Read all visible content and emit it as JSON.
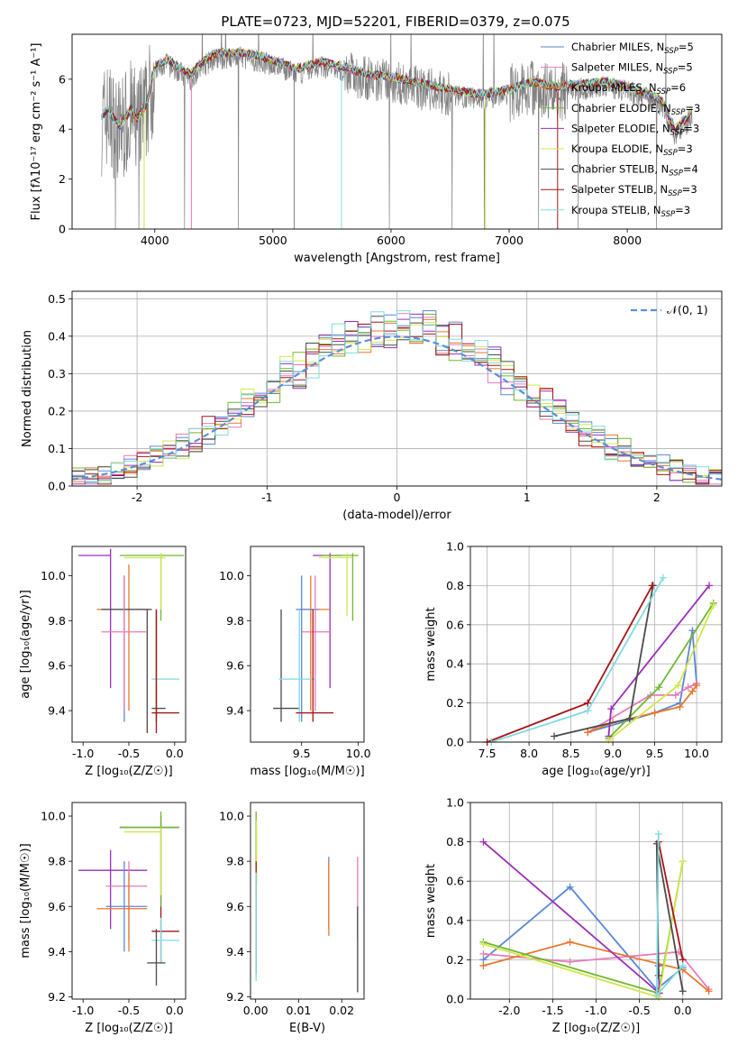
{
  "figure": {
    "title": "PLATE=0723, MJD=52201, FIBERID=0379, z=0.075"
  },
  "series_colors": {
    "Chabrier MILES": "#5b86d6",
    "Salpeter MILES": "#e87ab8",
    "Kroupa MILES": "#e8782a",
    "Chabrier ELODIE": "#6fb82f",
    "Salpeter ELODIE": "#9a2fb8",
    "Kroupa ELODIE": "#d2e64a",
    "Chabrier STELIB": "#4a4a4a",
    "Salpeter STELIB": "#a81414",
    "Kroupa STELIB": "#7fdbe0"
  },
  "chart_data": [
    {
      "type": "line",
      "panel": "spectrum",
      "title": "PLATE=0723, MJD=52201, FIBERID=0379, z=0.075",
      "xlabel": "wavelength [Angstrom, rest frame]",
      "ylabel": "Flux [fλ10⁻¹⁷ erg cm⁻² s⁻¹ A⁻¹]",
      "xlim": [
        3300,
        8800
      ],
      "ylim": [
        0,
        7.8
      ],
      "xticks": [
        4000,
        5000,
        6000,
        7000,
        8000
      ],
      "yticks": [
        0,
        2,
        4,
        6
      ],
      "data_color": "#808080",
      "continuum": [
        [
          3550,
          4.3
        ],
        [
          3600,
          4.6
        ],
        [
          3700,
          3.9
        ],
        [
          3800,
          4.6
        ],
        [
          3850,
          4.2
        ],
        [
          3930,
          4.8
        ],
        [
          4000,
          6.3
        ],
        [
          4100,
          6.6
        ],
        [
          4200,
          6.3
        ],
        [
          4300,
          6.0
        ],
        [
          4400,
          6.5
        ],
        [
          4500,
          6.8
        ],
        [
          4700,
          6.9
        ],
        [
          4900,
          6.7
        ],
        [
          5100,
          6.4
        ],
        [
          5200,
          6.2
        ],
        [
          5400,
          6.5
        ],
        [
          5600,
          6.3
        ],
        [
          5800,
          6.0
        ],
        [
          6000,
          5.9
        ],
        [
          6200,
          5.7
        ],
        [
          6400,
          5.5
        ],
        [
          6600,
          5.3
        ],
        [
          6800,
          5.2
        ],
        [
          7000,
          5.4
        ],
        [
          7200,
          5.7
        ],
        [
          7400,
          5.5
        ],
        [
          7600,
          5.6
        ],
        [
          7800,
          5.7
        ],
        [
          8000,
          5.5
        ],
        [
          8200,
          5.2
        ],
        [
          8300,
          4.9
        ],
        [
          8400,
          3.8
        ],
        [
          8500,
          4.2
        ],
        [
          8550,
          4.6
        ]
      ],
      "legend_location": "upper right",
      "legend": [
        {
          "label": "Chabrier MILES, N",
          "sub": "SSP",
          "tail": "=5",
          "color": "#5b86d6"
        },
        {
          "label": "Salpeter MILES, N",
          "sub": "SSP",
          "tail": "=5",
          "color": "#e87ab8"
        },
        {
          "label": "Kroupa MILES, N",
          "sub": "SSP",
          "tail": "=6",
          "color": "#e8782a"
        },
        {
          "label": "Chabrier ELODIE, N",
          "sub": "SSP",
          "tail": "=3",
          "color": "#6fb82f"
        },
        {
          "label": "Salpeter ELODIE, N",
          "sub": "SSP",
          "tail": "=3",
          "color": "#9a2fb8"
        },
        {
          "label": "Kroupa ELODIE, N",
          "sub": "SSP",
          "tail": "=3",
          "color": "#d2e64a"
        },
        {
          "label": "Chabrier STELIB, N",
          "sub": "SSP",
          "tail": "=4",
          "color": "#4a4a4a"
        },
        {
          "label": "Salpeter STELIB, N",
          "sub": "SSP",
          "tail": "=3",
          "color": "#a81414"
        },
        {
          "label": "Kroupa STELIB, N",
          "sub": "SSP",
          "tail": "=3",
          "color": "#7fdbe0"
        }
      ]
    },
    {
      "type": "histogram",
      "panel": "residuals",
      "xlabel": "(data-model)/error",
      "ylabel": "Normed distribution",
      "xlim": [
        -2.5,
        2.5
      ],
      "ylim": [
        0,
        0.52
      ],
      "xticks": [
        -2,
        -1,
        0,
        1,
        2
      ],
      "yticks": [
        0.0,
        0.1,
        0.2,
        0.3,
        0.4,
        0.5
      ],
      "grid": true,
      "legend_location": "upper right",
      "gaussian_label": "𝒩(0, 1)",
      "gaussian_color": "#5b8fd6",
      "bin_width": 0.1,
      "bin_start": -2.5
    },
    {
      "type": "scatter",
      "panel": "age-Z",
      "xlabel": "Z [log₁₀(Z/Z☉)]",
      "ylabel": "age  [log₁₀(age/yr)]",
      "xlim": [
        -1.12,
        0.12
      ],
      "ylim": [
        9.26,
        10.13
      ],
      "xticks": [
        -1.0,
        -0.5,
        0.0
      ],
      "yticks": [
        9.4,
        9.6,
        9.8,
        10.0
      ]
    },
    {
      "type": "scatter",
      "panel": "age-mass",
      "xlabel": "mass [log₁₀(M/M☉)]",
      "xlim": [
        9.05,
        10.05
      ],
      "ylim": [
        9.26,
        10.13
      ],
      "xticks": [
        9.5,
        10.0
      ],
      "yticks": [
        9.4,
        9.6,
        9.8,
        10.0
      ]
    },
    {
      "type": "line",
      "panel": "weight-age",
      "xlabel": "age  [log₁₀(age/yr)]",
      "ylabel": "mass weight",
      "xlim": [
        7.3,
        10.3
      ],
      "ylim": [
        0,
        1.0
      ],
      "xticks": [
        7.5,
        8.0,
        8.5,
        9.0,
        9.5,
        10.0
      ],
      "yticks": [
        0.0,
        0.2,
        0.4,
        0.6,
        0.8,
        1.0
      ],
      "grid": true,
      "series": [
        {
          "name": "Chabrier MILES",
          "color": "#5b86d6",
          "x": [
            8.7,
            9.5,
            9.8,
            9.95,
            10.0
          ],
          "y": [
            0.05,
            0.15,
            0.2,
            0.57,
            0.3
          ]
        },
        {
          "name": "Salpeter MILES",
          "color": "#e87ab8",
          "x": [
            8.7,
            9.45,
            9.75,
            9.9,
            10.0
          ],
          "y": [
            0.05,
            0.24,
            0.24,
            0.28,
            0.3
          ]
        },
        {
          "name": "Kroupa MILES",
          "color": "#e8782a",
          "x": [
            8.7,
            9.0,
            9.5,
            9.8,
            9.95,
            10.0
          ],
          "y": [
            0.05,
            0.1,
            0.15,
            0.18,
            0.26,
            0.29
          ]
        },
        {
          "name": "Chabrier ELODIE",
          "color": "#6fb82f",
          "x": [
            8.95,
            9.55,
            10.2
          ],
          "y": [
            0.02,
            0.28,
            0.71
          ]
        },
        {
          "name": "Salpeter ELODIE",
          "color": "#9a2fb8",
          "x": [
            8.95,
            8.98,
            10.15
          ],
          "y": [
            0.03,
            0.17,
            0.8
          ]
        },
        {
          "name": "Kroupa ELODIE",
          "color": "#d2e64a",
          "x": [
            8.95,
            9.78,
            10.2
          ],
          "y": [
            0.01,
            0.29,
            0.7
          ]
        },
        {
          "name": "Chabrier STELIB",
          "color": "#4a4a4a",
          "x": [
            8.3,
            9.2,
            9.48
          ],
          "y": [
            0.03,
            0.12,
            0.8
          ]
        },
        {
          "name": "Salpeter STELIB",
          "color": "#a81414",
          "x": [
            7.5,
            8.7,
            9.47
          ],
          "y": [
            0.0,
            0.2,
            0.8
          ]
        },
        {
          "name": "Kroupa STELIB",
          "color": "#7fdbe0",
          "x": [
            7.55,
            8.7,
            9.6
          ],
          "y": [
            0.0,
            0.16,
            0.84
          ]
        }
      ]
    },
    {
      "type": "scatter",
      "panel": "mass-Z",
      "xlabel": "Z [log₁₀(Z/Z☉)]",
      "ylabel": "mass [log₁₀(M/M☉)]",
      "xlim": [
        -1.12,
        0.12
      ],
      "ylim": [
        9.19,
        10.06
      ],
      "xticks": [
        -1.0,
        -0.5,
        0.0
      ],
      "yticks": [
        9.2,
        9.4,
        9.6,
        9.8,
        10.0
      ]
    },
    {
      "type": "scatter",
      "panel": "mass-ebv",
      "xlabel": "E(B-V)",
      "xlim": [
        -0.0012,
        0.0252
      ],
      "ylim": [
        9.19,
        10.06
      ],
      "xticks": [
        0.0,
        0.01,
        0.02
      ],
      "xticklabels": [
        "0.00",
        "0.01",
        "0.02"
      ],
      "yticks": [
        9.2,
        9.4,
        9.6,
        9.8,
        10.0
      ]
    },
    {
      "type": "line",
      "panel": "weight-Z",
      "xlabel": "Z [log₁₀(Z/Z☉)]",
      "ylabel": "mass weight",
      "xlim": [
        -2.45,
        0.45
      ],
      "ylim": [
        0,
        1.0
      ],
      "xticks": [
        -2.0,
        -1.5,
        -1.0,
        -0.5,
        0.0
      ],
      "yticks": [
        0.0,
        0.2,
        0.4,
        0.6,
        0.8,
        1.0
      ],
      "grid": true,
      "series": [
        {
          "name": "Chabrier MILES",
          "color": "#5b86d6",
          "x": [
            -2.3,
            -1.3,
            -0.3,
            0.0
          ],
          "y": [
            0.2,
            0.57,
            0.05,
            0.16
          ]
        },
        {
          "name": "Salpeter MILES",
          "color": "#e87ab8",
          "x": [
            -2.3,
            -1.3,
            -0.05,
            0.3
          ],
          "y": [
            0.23,
            0.19,
            0.24,
            0.05
          ]
        },
        {
          "name": "Kroupa MILES",
          "color": "#e8782a",
          "x": [
            -2.3,
            -1.3,
            0.0,
            0.3
          ],
          "y": [
            0.17,
            0.29,
            0.15,
            0.04
          ]
        },
        {
          "name": "Chabrier ELODIE",
          "color": "#6fb82f",
          "x": [
            -2.3,
            -0.28,
            0.0
          ],
          "y": [
            0.29,
            0.03,
            0.7
          ]
        },
        {
          "name": "Salpeter ELODIE",
          "color": "#9a2fb8",
          "x": [
            -2.3,
            -0.27,
            -0.28
          ],
          "y": [
            0.8,
            0.03,
            0.17
          ]
        },
        {
          "name": "Kroupa ELODIE",
          "color": "#d2e64a",
          "x": [
            -2.3,
            -0.28,
            0.0
          ],
          "y": [
            0.28,
            0.01,
            0.7
          ]
        },
        {
          "name": "Chabrier STELIB",
          "color": "#4a4a4a",
          "x": [
            -0.28,
            -0.3,
            0.0
          ],
          "y": [
            0.12,
            0.79,
            0.04
          ]
        },
        {
          "name": "Salpeter STELIB",
          "color": "#a81414",
          "x": [
            -0.28,
            0.0
          ],
          "y": [
            0.8,
            0.2
          ]
        },
        {
          "name": "Kroupa STELIB",
          "color": "#7fdbe0",
          "x": [
            -0.28,
            -0.3,
            0.0
          ],
          "y": [
            0.84,
            0.02,
            0.17
          ]
        }
      ]
    }
  ],
  "errorbars": {
    "age_Z": [
      {
        "color": "#9a2fb8",
        "x": -0.7,
        "xe": [
          -1.05,
          -0.7
        ],
        "y": 10.09,
        "ye": [
          9.5,
          10.12
        ]
      },
      {
        "color": "#6fb82f",
        "x": -0.15,
        "xe": [
          -0.6,
          0.1
        ],
        "y": 10.09,
        "ye": [
          9.8,
          10.1
        ]
      },
      {
        "color": "#d2e64a",
        "x": -0.15,
        "xe": [
          -0.55,
          -0.1
        ],
        "y": 10.08,
        "ye": [
          9.85,
          10.1
        ]
      },
      {
        "color": "#e8782a",
        "x": -0.5,
        "xe": [
          -0.85,
          -0.25
        ],
        "y": 9.85,
        "ye": [
          9.4,
          10.05
        ]
      },
      {
        "color": "#5b86d6",
        "x": -0.55,
        "xe": [
          -0.8,
          -0.3
        ],
        "y": 9.85,
        "ye": [
          9.35,
          10.0
        ]
      },
      {
        "color": "#4a4a4a",
        "x": -0.3,
        "xe": [
          -0.8,
          -0.25
        ],
        "y": 9.85,
        "ye": [
          9.3,
          9.85
        ]
      },
      {
        "color": "#e87ab8",
        "x": -0.55,
        "xe": [
          -0.8,
          -0.3
        ],
        "y": 9.75,
        "ye": [
          9.4,
          10.0
        ]
      },
      {
        "color": "#7fdbe0",
        "x": -0.2,
        "xe": [
          -0.25,
          0.05
        ],
        "y": 9.54,
        "ye": [
          9.35,
          9.85
        ]
      },
      {
        "color": "#4a4a4a",
        "x": -0.2,
        "xe": [
          -0.25,
          -0.1
        ],
        "y": 9.41,
        "ye": [
          9.35,
          9.85
        ]
      },
      {
        "color": "#a81414",
        "x": -0.2,
        "xe": [
          -0.25,
          0.05
        ],
        "y": 9.39,
        "ye": [
          9.3,
          9.85
        ]
      }
    ],
    "age_mass": [
      {
        "color": "#9a2fb8",
        "x": 9.75,
        "xe": [
          9.6,
          9.85
        ],
        "y": 10.09,
        "ye": [
          9.5,
          10.1
        ]
      },
      {
        "color": "#6fb82f",
        "x": 9.95,
        "xe": [
          9.68,
          10.0
        ],
        "y": 10.09,
        "ye": [
          9.8,
          10.1
        ]
      },
      {
        "color": "#d2e64a",
        "x": 9.9,
        "xe": [
          9.65,
          9.95
        ],
        "y": 10.08,
        "ye": [
          9.82,
          10.1
        ]
      },
      {
        "color": "#e8782a",
        "x": 9.58,
        "xe": [
          9.48,
          9.75
        ],
        "y": 9.85,
        "ye": [
          9.4,
          10.0
        ]
      },
      {
        "color": "#5b86d6",
        "x": 9.5,
        "xe": [
          9.45,
          9.65
        ],
        "y": 9.85,
        "ye": [
          9.35,
          10.0
        ]
      },
      {
        "color": "#4a4a4a",
        "x": 9.32,
        "xe": [
          9.25,
          9.48
        ],
        "y": 9.41,
        "ye": [
          9.35,
          9.85
        ]
      },
      {
        "color": "#e87ab8",
        "x": 9.62,
        "xe": [
          9.5,
          9.75
        ],
        "y": 9.75,
        "ye": [
          9.4,
          10.0
        ]
      },
      {
        "color": "#7fdbe0",
        "x": 9.48,
        "xe": [
          9.3,
          9.62
        ],
        "y": 9.54,
        "ye": [
          9.35,
          9.85
        ]
      },
      {
        "color": "#a81414",
        "x": 9.6,
        "xe": [
          9.45,
          9.78
        ],
        "y": 9.39,
        "ye": [
          9.35,
          9.85
        ]
      }
    ],
    "mass_Z": [
      {
        "color": "#4a4a4a",
        "x": -0.15,
        "xe": [
          -0.6,
          0.05
        ],
        "y": 9.95,
        "ye": [
          9.6,
          10.0
        ]
      },
      {
        "color": "#6fb82f",
        "x": -0.15,
        "xe": [
          -0.6,
          0.05
        ],
        "y": 9.95,
        "ye": [
          9.6,
          10.02
        ]
      },
      {
        "color": "#d2e64a",
        "x": -0.15,
        "xe": [
          -0.55,
          -0.15
        ],
        "y": 9.93,
        "ye": [
          9.65,
          9.95
        ]
      },
      {
        "color": "#9a2fb8",
        "x": -0.7,
        "xe": [
          -1.05,
          -0.3
        ],
        "y": 9.76,
        "ye": [
          9.5,
          9.85
        ]
      },
      {
        "color": "#e87ab8",
        "x": -0.5,
        "xe": [
          -0.75,
          -0.3
        ],
        "y": 9.69,
        "ye": [
          9.45,
          9.8
        ]
      },
      {
        "color": "#5b86d6",
        "x": -0.55,
        "xe": [
          -0.75,
          -0.3
        ],
        "y": 9.6,
        "ye": [
          9.4,
          9.8
        ]
      },
      {
        "color": "#e8782a",
        "x": -0.5,
        "xe": [
          -0.85,
          -0.3
        ],
        "y": 9.59,
        "ye": [
          9.4,
          9.75
        ]
      },
      {
        "color": "#a81414",
        "x": -0.15,
        "xe": [
          -0.25,
          0.05
        ],
        "y": 9.49,
        "ye": [
          9.35,
          9.6
        ]
      },
      {
        "color": "#7fdbe0",
        "x": -0.15,
        "xe": [
          -0.25,
          0.05
        ],
        "y": 9.45,
        "ye": [
          9.35,
          9.55
        ]
      },
      {
        "color": "#4a4a4a",
        "x": -0.2,
        "xe": [
          -0.3,
          -0.1
        ],
        "y": 9.35,
        "ye": [
          9.25,
          9.5
        ]
      }
    ],
    "mass_ebv": [
      {
        "color": "#6fb82f",
        "x": 0.0001,
        "ye": [
          9.65,
          10.02
        ]
      },
      {
        "color": "#d2e64a",
        "x": 0.0002,
        "ye": [
          9.7,
          9.98
        ]
      },
      {
        "color": "#a81414",
        "x": 0.0001,
        "ye": [
          9.3,
          9.8
        ]
      },
      {
        "color": "#7fdbe0",
        "x": 0.0001,
        "ye": [
          9.27,
          9.75
        ]
      },
      {
        "color": "#5b86d6",
        "x": 0.017,
        "ye": [
          9.5,
          9.82
        ]
      },
      {
        "color": "#e8782a",
        "x": 0.017,
        "ye": [
          9.47,
          9.8
        ]
      },
      {
        "color": "#e87ab8",
        "x": 0.0237,
        "ye": [
          9.45,
          9.82
        ]
      },
      {
        "color": "#4a4a4a",
        "x": 0.0237,
        "ye": [
          9.22,
          9.6
        ]
      }
    ]
  }
}
